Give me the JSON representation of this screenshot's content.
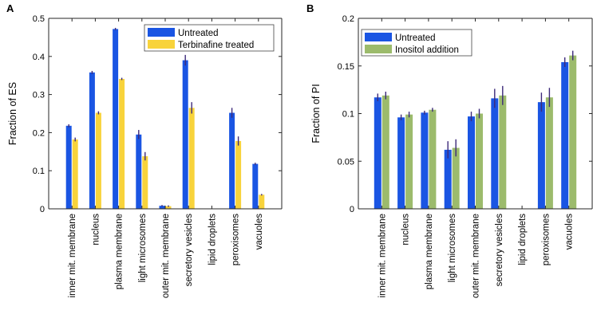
{
  "colors": {
    "blue": "#1a55e3",
    "yellow": "#f8d33b",
    "green": "#9cbb6c",
    "errorbar": "#3d2a7a",
    "axis": "#262626"
  },
  "chart_data": [
    {
      "type": "bar",
      "panel_label": "A",
      "ylabel": "Fraction of ES",
      "ylim": [
        0,
        0.5
      ],
      "yticks": [
        0,
        0.1,
        0.2,
        0.3,
        0.4,
        0.5
      ],
      "ytick_labels": [
        "0",
        "0.1",
        "0.2",
        "0.3",
        "0.4",
        "0.5"
      ],
      "grid": false,
      "legend_position": "top-right",
      "categories": [
        "inner mit. membrane",
        "nucleus",
        "plasma membrane",
        "light microsomes",
        "outer mit. membrane",
        "secretory vesicles",
        "lipid droplets",
        "peroxisomes",
        "vacuoles"
      ],
      "series": [
        {
          "name": "Untreated",
          "color": "#1a55e3",
          "values": [
            0.218,
            0.358,
            0.472,
            0.195,
            0.008,
            0.39,
            0.0,
            0.252,
            0.118
          ],
          "errors": [
            0.004,
            0.004,
            0.003,
            0.012,
            0.002,
            0.014,
            0.0,
            0.013,
            0.003
          ]
        },
        {
          "name": "Terbinafine treated",
          "color": "#f8d33b",
          "values": [
            0.182,
            0.252,
            0.341,
            0.138,
            0.007,
            0.265,
            0.0,
            0.178,
            0.037
          ],
          "errors": [
            0.005,
            0.004,
            0.003,
            0.011,
            0.002,
            0.015,
            0.0,
            0.012,
            0.002
          ]
        }
      ]
    },
    {
      "type": "bar",
      "panel_label": "B",
      "ylabel": "Fraction of PI",
      "ylim": [
        0,
        0.2
      ],
      "yticks": [
        0,
        0.05,
        0.1,
        0.15,
        0.2
      ],
      "ytick_labels": [
        "0",
        "0.05",
        "0.1",
        "0.15",
        "0.2"
      ],
      "grid": false,
      "legend_position": "top-left",
      "categories": [
        "inner mit. membrane",
        "nucleus",
        "plasma membrane",
        "light microsomes",
        "outer mit. membrane",
        "secretory vesicles",
        "lipid droplets",
        "peroxisomes",
        "vacuoles"
      ],
      "series": [
        {
          "name": "Untreated",
          "color": "#1a55e3",
          "values": [
            0.117,
            0.096,
            0.101,
            0.062,
            0.097,
            0.116,
            0.0,
            0.112,
            0.154
          ],
          "errors": [
            0.004,
            0.003,
            0.002,
            0.009,
            0.005,
            0.01,
            0.0,
            0.01,
            0.005
          ]
        },
        {
          "name": "Inositol addition",
          "color": "#9cbb6c",
          "values": [
            0.119,
            0.099,
            0.104,
            0.064,
            0.1,
            0.119,
            0.0,
            0.117,
            0.161
          ],
          "errors": [
            0.004,
            0.003,
            0.002,
            0.009,
            0.005,
            0.01,
            0.0,
            0.01,
            0.005
          ]
        }
      ]
    }
  ]
}
